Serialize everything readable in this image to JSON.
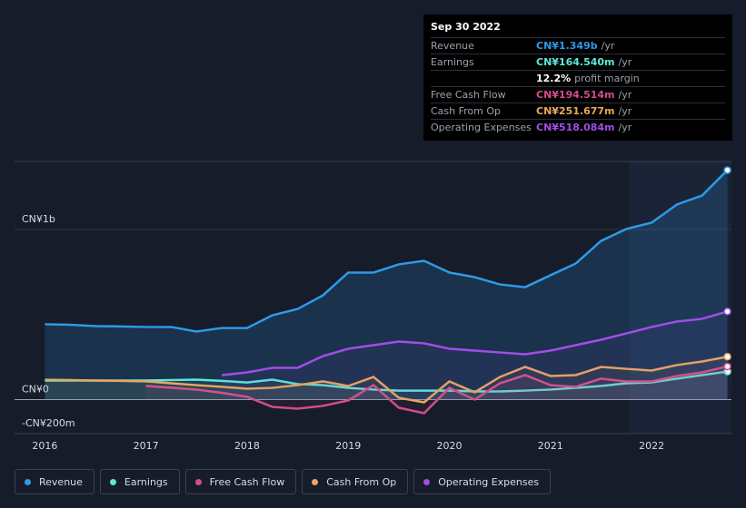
{
  "chart_data": {
    "type": "line",
    "x": [
      2016,
      2016.25,
      2016.5,
      2016.75,
      2017,
      2017.25,
      2017.5,
      2017.75,
      2018,
      2018.25,
      2018.5,
      2018.75,
      2019,
      2019.25,
      2019.5,
      2019.75,
      2020,
      2020.25,
      2020.5,
      2020.75,
      2021,
      2021.25,
      2021.5,
      2021.75,
      2022,
      2022.25,
      2022.5,
      2022.75
    ],
    "xlim": [
      2015.7,
      2022.79
    ],
    "xticks": [
      2016,
      2017,
      2018,
      2019,
      2020,
      2021,
      2022
    ],
    "ylim": [
      -200,
      1400
    ],
    "yticks": [
      {
        "value": 1000,
        "label": "CN¥1b"
      },
      {
        "value": 0,
        "label": "CN¥0"
      },
      {
        "value": -200,
        "label": "-CN¥200m"
      }
    ],
    "series": [
      {
        "name": "Revenue",
        "color": "#2d9ae8",
        "values": [
          443,
          440,
          432,
          430,
          427,
          427,
          400,
          421,
          421,
          496,
          533,
          613,
          747,
          747,
          795,
          816,
          747,
          720,
          677,
          661,
          731,
          800,
          933,
          1003,
          1040,
          1147,
          1200,
          1349
        ]
      },
      {
        "name": "Earnings",
        "color": "#5ee8d8",
        "values": [
          112,
          112,
          112,
          112,
          112,
          115,
          117,
          110,
          101,
          117,
          91,
          85,
          69,
          59,
          53,
          53,
          53,
          48,
          48,
          53,
          59,
          69,
          80,
          96,
          101,
          123,
          144,
          165
        ]
      },
      {
        "name": "Free Cash Flow",
        "color": "#d24d8a",
        "values": [
          null,
          null,
          null,
          null,
          80,
          70,
          59,
          40,
          16,
          -43,
          -53,
          -37,
          -5,
          85,
          -48,
          -80,
          69,
          0,
          96,
          144,
          85,
          75,
          123,
          107,
          107,
          139,
          160,
          195
        ]
      },
      {
        "name": "Cash From Op",
        "color": "#e8a85e",
        "values": [
          117,
          115,
          112,
          110,
          107,
          96,
          85,
          75,
          64,
          69,
          85,
          107,
          80,
          133,
          11,
          -16,
          107,
          43,
          133,
          192,
          139,
          144,
          192,
          181,
          171,
          203,
          224,
          252
        ]
      },
      {
        "name": "Operating Expenses",
        "color": "#a24de8",
        "values": [
          null,
          null,
          null,
          null,
          null,
          null,
          null,
          144,
          160,
          187,
          187,
          256,
          299,
          320,
          341,
          331,
          299,
          288,
          277,
          267,
          288,
          320,
          352,
          389,
          427,
          459,
          475,
          518
        ]
      }
    ],
    "tooltip": {
      "date": "Sep 30 2022",
      "rows": [
        {
          "label": "Revenue",
          "value": "CN¥1.349b",
          "unit": "/yr"
        },
        {
          "label": "Earnings",
          "value": "CN¥164.540m",
          "unit": "/yr"
        },
        {
          "label": "",
          "value": "12.2%",
          "unit": "profit margin"
        },
        {
          "label": "Free Cash Flow",
          "value": "CN¥194.514m",
          "unit": "/yr"
        },
        {
          "label": "Cash From Op",
          "value": "CN¥251.677m",
          "unit": "/yr"
        },
        {
          "label": "Operating Expenses",
          "value": "CN¥518.084m",
          "unit": "/yr"
        }
      ]
    }
  }
}
